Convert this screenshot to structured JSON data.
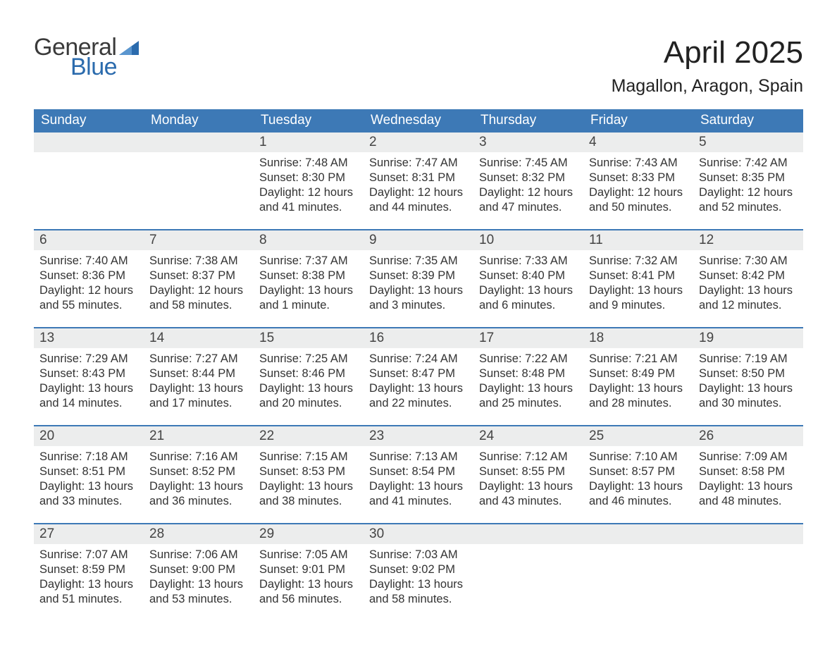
{
  "logo": {
    "text_top": "General",
    "text_bottom": "Blue",
    "color_top": "#3a3a3a",
    "color_bottom": "#2b6bad",
    "flag_color": "#2b6bad"
  },
  "title": "April 2025",
  "location": "Magallon, Aragon, Spain",
  "colors": {
    "header_bg": "#3d79b6",
    "header_text": "#ffffff",
    "daynum_bg": "#eceded",
    "week_border": "#3d79b6",
    "background": "#ffffff",
    "text": "#333333"
  },
  "typography": {
    "title_fontsize": 44,
    "location_fontsize": 25,
    "header_fontsize": 19,
    "daynum_fontsize": 19,
    "body_fontsize": 16.5
  },
  "day_headers": [
    "Sunday",
    "Monday",
    "Tuesday",
    "Wednesday",
    "Thursday",
    "Friday",
    "Saturday"
  ],
  "layout": {
    "columns": 7,
    "rows": 5,
    "first_day_column": 2
  },
  "weeks": [
    [
      null,
      null,
      {
        "n": "1",
        "sunrise": "Sunrise: 7:48 AM",
        "sunset": "Sunset: 8:30 PM",
        "daylight": "Daylight: 12 hours and 41 minutes."
      },
      {
        "n": "2",
        "sunrise": "Sunrise: 7:47 AM",
        "sunset": "Sunset: 8:31 PM",
        "daylight": "Daylight: 12 hours and 44 minutes."
      },
      {
        "n": "3",
        "sunrise": "Sunrise: 7:45 AM",
        "sunset": "Sunset: 8:32 PM",
        "daylight": "Daylight: 12 hours and 47 minutes."
      },
      {
        "n": "4",
        "sunrise": "Sunrise: 7:43 AM",
        "sunset": "Sunset: 8:33 PM",
        "daylight": "Daylight: 12 hours and 50 minutes."
      },
      {
        "n": "5",
        "sunrise": "Sunrise: 7:42 AM",
        "sunset": "Sunset: 8:35 PM",
        "daylight": "Daylight: 12 hours and 52 minutes."
      }
    ],
    [
      {
        "n": "6",
        "sunrise": "Sunrise: 7:40 AM",
        "sunset": "Sunset: 8:36 PM",
        "daylight": "Daylight: 12 hours and 55 minutes."
      },
      {
        "n": "7",
        "sunrise": "Sunrise: 7:38 AM",
        "sunset": "Sunset: 8:37 PM",
        "daylight": "Daylight: 12 hours and 58 minutes."
      },
      {
        "n": "8",
        "sunrise": "Sunrise: 7:37 AM",
        "sunset": "Sunset: 8:38 PM",
        "daylight": "Daylight: 13 hours and 1 minute."
      },
      {
        "n": "9",
        "sunrise": "Sunrise: 7:35 AM",
        "sunset": "Sunset: 8:39 PM",
        "daylight": "Daylight: 13 hours and 3 minutes."
      },
      {
        "n": "10",
        "sunrise": "Sunrise: 7:33 AM",
        "sunset": "Sunset: 8:40 PM",
        "daylight": "Daylight: 13 hours and 6 minutes."
      },
      {
        "n": "11",
        "sunrise": "Sunrise: 7:32 AM",
        "sunset": "Sunset: 8:41 PM",
        "daylight": "Daylight: 13 hours and 9 minutes."
      },
      {
        "n": "12",
        "sunrise": "Sunrise: 7:30 AM",
        "sunset": "Sunset: 8:42 PM",
        "daylight": "Daylight: 13 hours and 12 minutes."
      }
    ],
    [
      {
        "n": "13",
        "sunrise": "Sunrise: 7:29 AM",
        "sunset": "Sunset: 8:43 PM",
        "daylight": "Daylight: 13 hours and 14 minutes."
      },
      {
        "n": "14",
        "sunrise": "Sunrise: 7:27 AM",
        "sunset": "Sunset: 8:44 PM",
        "daylight": "Daylight: 13 hours and 17 minutes."
      },
      {
        "n": "15",
        "sunrise": "Sunrise: 7:25 AM",
        "sunset": "Sunset: 8:46 PM",
        "daylight": "Daylight: 13 hours and 20 minutes."
      },
      {
        "n": "16",
        "sunrise": "Sunrise: 7:24 AM",
        "sunset": "Sunset: 8:47 PM",
        "daylight": "Daylight: 13 hours and 22 minutes."
      },
      {
        "n": "17",
        "sunrise": "Sunrise: 7:22 AM",
        "sunset": "Sunset: 8:48 PM",
        "daylight": "Daylight: 13 hours and 25 minutes."
      },
      {
        "n": "18",
        "sunrise": "Sunrise: 7:21 AM",
        "sunset": "Sunset: 8:49 PM",
        "daylight": "Daylight: 13 hours and 28 minutes."
      },
      {
        "n": "19",
        "sunrise": "Sunrise: 7:19 AM",
        "sunset": "Sunset: 8:50 PM",
        "daylight": "Daylight: 13 hours and 30 minutes."
      }
    ],
    [
      {
        "n": "20",
        "sunrise": "Sunrise: 7:18 AM",
        "sunset": "Sunset: 8:51 PM",
        "daylight": "Daylight: 13 hours and 33 minutes."
      },
      {
        "n": "21",
        "sunrise": "Sunrise: 7:16 AM",
        "sunset": "Sunset: 8:52 PM",
        "daylight": "Daylight: 13 hours and 36 minutes."
      },
      {
        "n": "22",
        "sunrise": "Sunrise: 7:15 AM",
        "sunset": "Sunset: 8:53 PM",
        "daylight": "Daylight: 13 hours and 38 minutes."
      },
      {
        "n": "23",
        "sunrise": "Sunrise: 7:13 AM",
        "sunset": "Sunset: 8:54 PM",
        "daylight": "Daylight: 13 hours and 41 minutes."
      },
      {
        "n": "24",
        "sunrise": "Sunrise: 7:12 AM",
        "sunset": "Sunset: 8:55 PM",
        "daylight": "Daylight: 13 hours and 43 minutes."
      },
      {
        "n": "25",
        "sunrise": "Sunrise: 7:10 AM",
        "sunset": "Sunset: 8:57 PM",
        "daylight": "Daylight: 13 hours and 46 minutes."
      },
      {
        "n": "26",
        "sunrise": "Sunrise: 7:09 AM",
        "sunset": "Sunset: 8:58 PM",
        "daylight": "Daylight: 13 hours and 48 minutes."
      }
    ],
    [
      {
        "n": "27",
        "sunrise": "Sunrise: 7:07 AM",
        "sunset": "Sunset: 8:59 PM",
        "daylight": "Daylight: 13 hours and 51 minutes."
      },
      {
        "n": "28",
        "sunrise": "Sunrise: 7:06 AM",
        "sunset": "Sunset: 9:00 PM",
        "daylight": "Daylight: 13 hours and 53 minutes."
      },
      {
        "n": "29",
        "sunrise": "Sunrise: 7:05 AM",
        "sunset": "Sunset: 9:01 PM",
        "daylight": "Daylight: 13 hours and 56 minutes."
      },
      {
        "n": "30",
        "sunrise": "Sunrise: 7:03 AM",
        "sunset": "Sunset: 9:02 PM",
        "daylight": "Daylight: 13 hours and 58 minutes."
      },
      null,
      null,
      null
    ]
  ]
}
